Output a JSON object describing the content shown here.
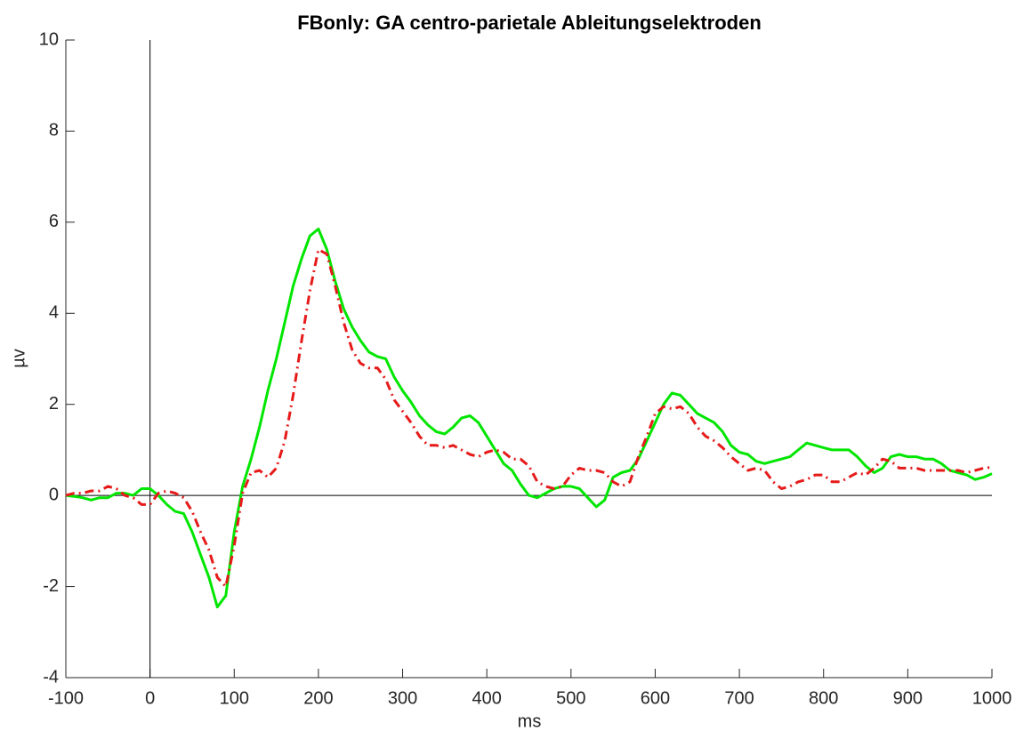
{
  "chart_data": {
    "type": "line",
    "title": "FBonly: GA centro-parietale Ableitungselektroden",
    "x_label": "ms",
    "y_label": "µv",
    "x": [
      -100,
      -90,
      -80,
      -70,
      -60,
      -50,
      -40,
      -30,
      -20,
      -10,
      0,
      10,
      20,
      30,
      40,
      50,
      60,
      70,
      80,
      90,
      100,
      110,
      120,
      130,
      140,
      150,
      160,
      170,
      180,
      190,
      200,
      210,
      220,
      230,
      240,
      250,
      260,
      270,
      280,
      290,
      300,
      310,
      320,
      330,
      340,
      350,
      360,
      370,
      380,
      390,
      400,
      410,
      420,
      430,
      440,
      450,
      460,
      470,
      480,
      490,
      500,
      510,
      520,
      530,
      540,
      550,
      560,
      570,
      580,
      590,
      600,
      610,
      620,
      630,
      640,
      650,
      660,
      670,
      680,
      690,
      700,
      710,
      720,
      730,
      740,
      750,
      760,
      770,
      780,
      790,
      800,
      810,
      820,
      830,
      840,
      850,
      860,
      870,
      880,
      890,
      900,
      910,
      920,
      930,
      940,
      950,
      960,
      970,
      980,
      990,
      1000
    ],
    "series": [
      {
        "color": "#00e600",
        "line_style": "solid",
        "values": [
          0.0,
          -0.02,
          -0.05,
          -0.1,
          -0.05,
          -0.05,
          0.05,
          0.05,
          0.0,
          0.15,
          0.15,
          0.0,
          -0.2,
          -0.35,
          -0.4,
          -0.8,
          -1.3,
          -1.8,
          -2.45,
          -2.2,
          -0.8,
          0.2,
          0.8,
          1.5,
          2.3,
          3.0,
          3.8,
          4.6,
          5.2,
          5.7,
          5.85,
          5.4,
          4.7,
          4.1,
          3.7,
          3.4,
          3.15,
          3.05,
          3.0,
          2.6,
          2.3,
          2.05,
          1.75,
          1.55,
          1.4,
          1.35,
          1.5,
          1.7,
          1.75,
          1.6,
          1.3,
          1.0,
          0.7,
          0.55,
          0.25,
          0.0,
          -0.05,
          0.05,
          0.15,
          0.2,
          0.2,
          0.15,
          -0.05,
          -0.25,
          -0.1,
          0.4,
          0.5,
          0.55,
          0.8,
          1.2,
          1.6,
          2.0,
          2.25,
          2.2,
          2.0,
          1.8,
          1.7,
          1.6,
          1.4,
          1.1,
          0.95,
          0.9,
          0.75,
          0.7,
          0.75,
          0.8,
          0.85,
          1.0,
          1.15,
          1.1,
          1.05,
          1.0,
          1.0,
          1.0,
          0.85,
          0.65,
          0.5,
          0.6,
          0.85,
          0.9,
          0.85,
          0.85,
          0.8,
          0.8,
          0.7,
          0.55,
          0.5,
          0.45,
          0.35,
          0.4,
          0.48
        ]
      },
      {
        "color": "#e61a1a",
        "line_style": "dashdot",
        "values": [
          0.0,
          0.05,
          0.05,
          0.1,
          0.1,
          0.2,
          0.15,
          0.0,
          -0.05,
          -0.2,
          -0.2,
          0.05,
          0.1,
          0.05,
          -0.05,
          -0.35,
          -0.8,
          -1.2,
          -1.8,
          -2.0,
          -1.1,
          0.05,
          0.5,
          0.55,
          0.4,
          0.6,
          1.2,
          2.2,
          3.4,
          4.5,
          5.4,
          5.3,
          4.6,
          3.8,
          3.2,
          2.9,
          2.8,
          2.8,
          2.55,
          2.1,
          1.85,
          1.6,
          1.3,
          1.1,
          1.1,
          1.05,
          1.1,
          1.0,
          0.9,
          0.85,
          0.95,
          1.0,
          0.95,
          0.8,
          0.8,
          0.65,
          0.3,
          0.2,
          0.15,
          0.2,
          0.45,
          0.6,
          0.55,
          0.55,
          0.5,
          0.3,
          0.2,
          0.3,
          0.85,
          1.3,
          1.8,
          1.95,
          1.9,
          1.95,
          1.8,
          1.5,
          1.3,
          1.2,
          1.05,
          0.85,
          0.7,
          0.55,
          0.6,
          0.55,
          0.3,
          0.15,
          0.2,
          0.3,
          0.35,
          0.45,
          0.45,
          0.3,
          0.3,
          0.4,
          0.5,
          0.45,
          0.6,
          0.8,
          0.75,
          0.6,
          0.6,
          0.6,
          0.55,
          0.55,
          0.55,
          0.55,
          0.55,
          0.5,
          0.55,
          0.6,
          0.62
        ]
      }
    ],
    "xlim": [
      -100,
      1000
    ],
    "xticks": [
      -100,
      0,
      100,
      200,
      300,
      400,
      500,
      600,
      700,
      800,
      900,
      1000
    ],
    "ylim": [
      -4,
      10
    ],
    "yticks": [
      -4,
      -2,
      0,
      2,
      4,
      6,
      8,
      10
    ],
    "grid": false
  }
}
